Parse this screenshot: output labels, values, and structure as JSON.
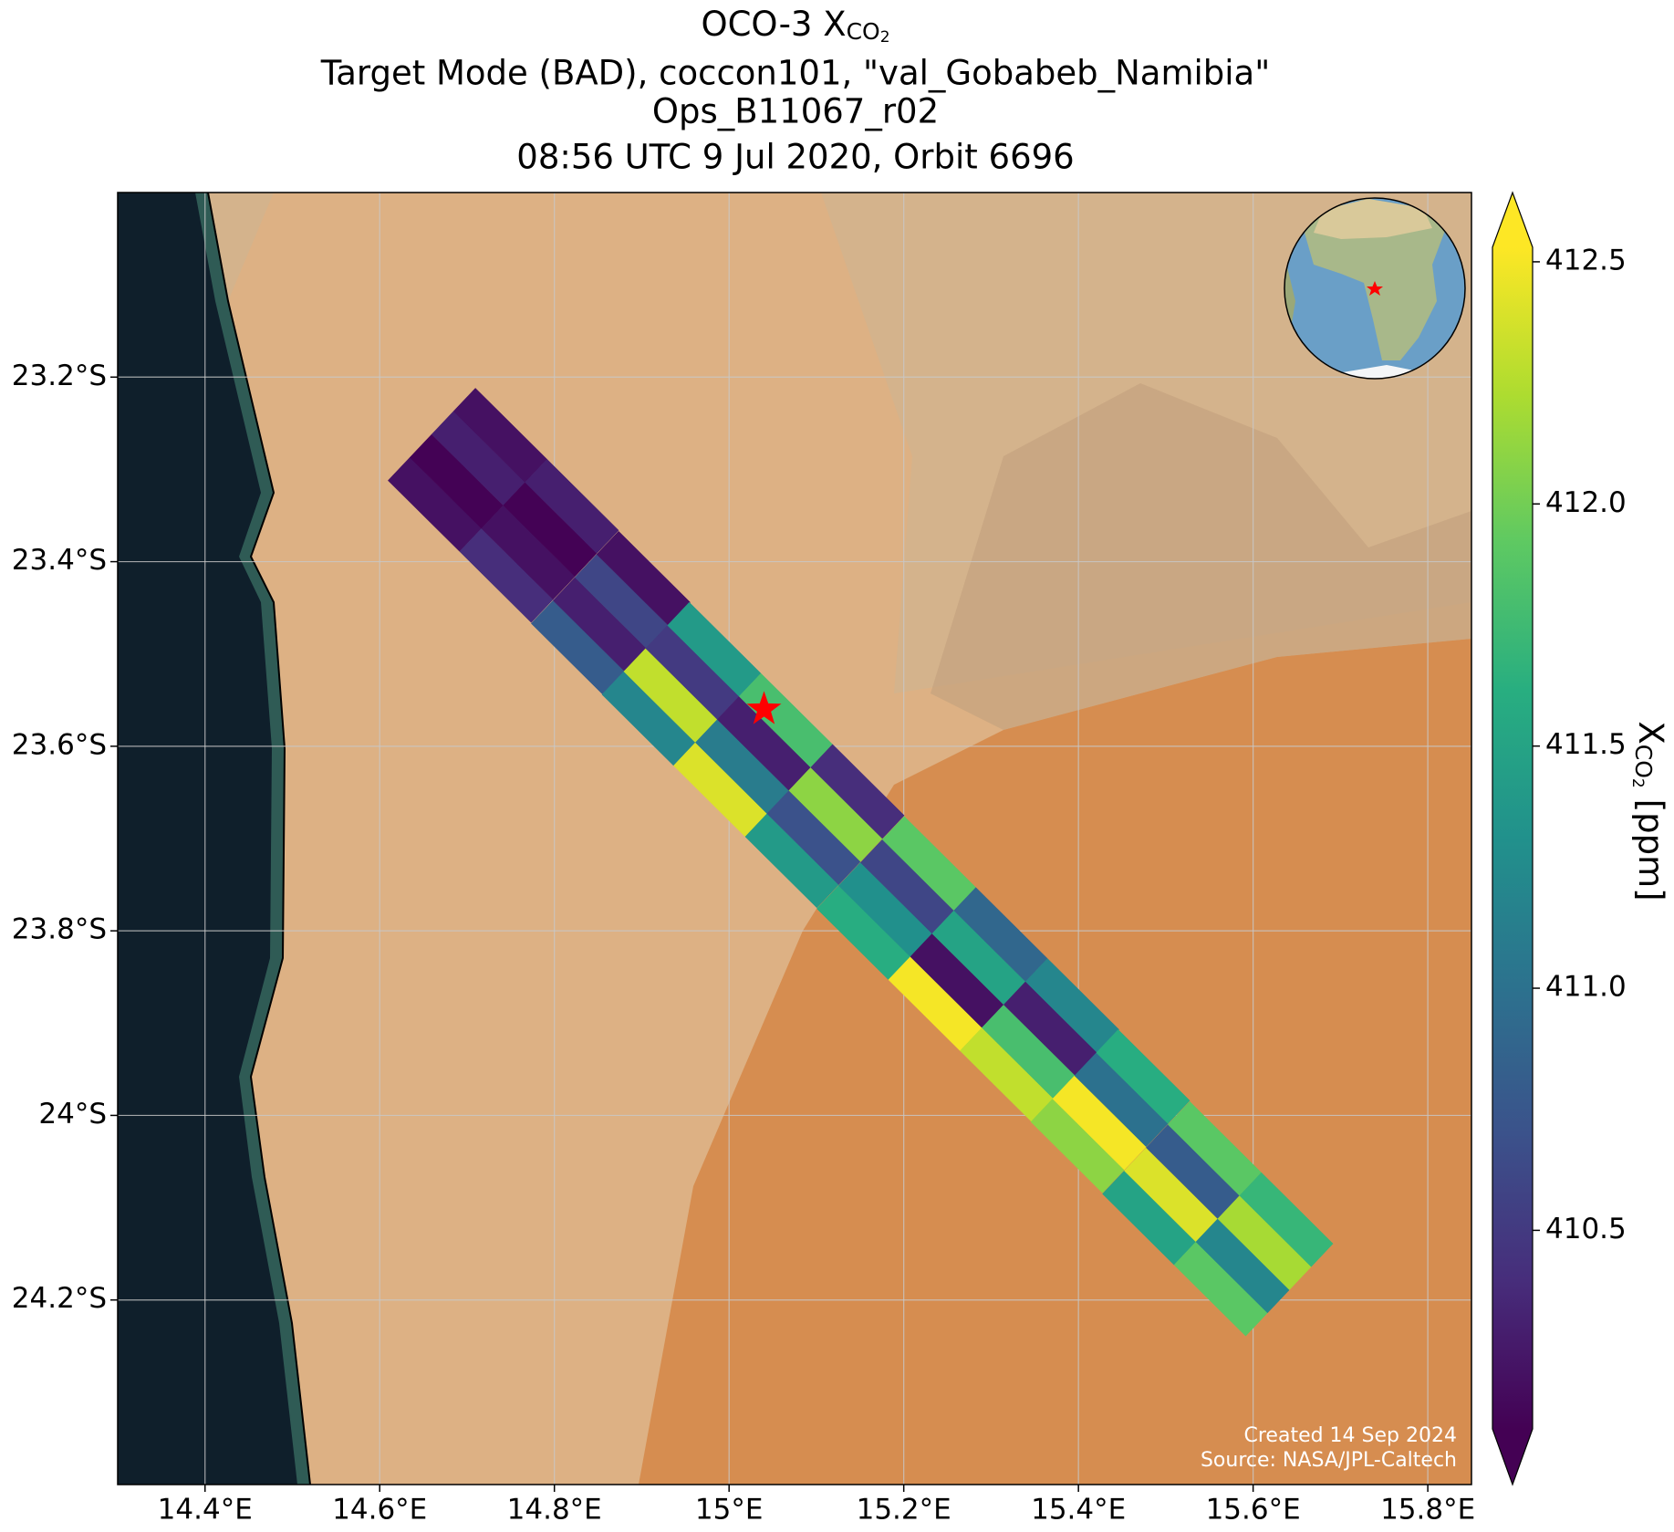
{
  "chart_data": {
    "type": "map",
    "title": {
      "text": "OCO-3 X",
      "subscript": "CO",
      "subsubscript": "2"
    },
    "subtitle_lines": [
      "Target Mode (BAD), coccon101, \"val_Gobabeb_Namibia\"",
      "Ops_B11067_r02",
      "08:56 UTC 9 Jul 2020, Orbit 6696"
    ],
    "xlim": [
      14.3,
      15.85
    ],
    "ylim": [
      -24.4,
      -23.0
    ],
    "xticks": [
      {
        "value": 14.4,
        "label": "14.4°E"
      },
      {
        "value": 14.6,
        "label": "14.6°E"
      },
      {
        "value": 14.8,
        "label": "14.8°E"
      },
      {
        "value": 15.0,
        "label": "15°E"
      },
      {
        "value": 15.2,
        "label": "15.2°E"
      },
      {
        "value": 15.4,
        "label": "15.4°E"
      },
      {
        "value": 15.6,
        "label": "15.6°E"
      },
      {
        "value": 15.8,
        "label": "15.8°E"
      }
    ],
    "yticks": [
      {
        "value": -23.2,
        "label": "23.2°S"
      },
      {
        "value": -23.4,
        "label": "23.4°S"
      },
      {
        "value": -23.6,
        "label": "23.6°S"
      },
      {
        "value": -23.8,
        "label": "23.8°S"
      },
      {
        "value": -24.0,
        "label": "24°S"
      },
      {
        "value": -24.2,
        "label": "24.2°S"
      }
    ],
    "grid": true,
    "soundings": {
      "lon": [
        14.663,
        14.688,
        14.713,
        14.738,
        14.745,
        14.77,
        14.795,
        14.82,
        14.827,
        14.852,
        14.877,
        14.902,
        14.908,
        14.933,
        14.958,
        14.983,
        14.99,
        15.015,
        15.04,
        15.065,
        15.072,
        15.097,
        15.122,
        15.147,
        15.154,
        15.179,
        15.204,
        15.229,
        15.236,
        15.261,
        15.286,
        15.311,
        15.318,
        15.343,
        15.368,
        15.393,
        15.399,
        15.424,
        15.449,
        15.474,
        15.481,
        15.506,
        15.531,
        15.556,
        15.563,
        15.588,
        15.613,
        15.638
      ],
      "lat": [
        -23.338,
        -23.313,
        -23.288,
        -23.263,
        -23.415,
        -23.39,
        -23.365,
        -23.34,
        -23.493,
        -23.468,
        -23.443,
        -23.418,
        -23.57,
        -23.545,
        -23.52,
        -23.495,
        -23.647,
        -23.622,
        -23.597,
        -23.572,
        -23.724,
        -23.699,
        -23.674,
        -23.649,
        -23.802,
        -23.777,
        -23.752,
        -23.727,
        -23.879,
        -23.854,
        -23.829,
        -23.804,
        -23.956,
        -23.931,
        -23.906,
        -23.881,
        -24.033,
        -24.008,
        -23.983,
        -23.958,
        -24.111,
        -24.086,
        -24.061,
        -24.036,
        -24.188,
        -24.163,
        -24.138,
        -24.113
      ],
      "values": [
        410.2,
        410.1,
        410.3,
        410.2,
        410.4,
        410.2,
        410.1,
        410.3,
        410.8,
        410.3,
        410.6,
        410.2,
        411.2,
        412.3,
        410.5,
        411.4,
        412.4,
        411.1,
        410.3,
        411.8,
        411.4,
        410.7,
        412.1,
        410.4,
        411.6,
        411.3,
        410.6,
        411.9,
        412.5,
        410.2,
        411.5,
        410.9,
        412.3,
        411.8,
        410.3,
        411.2,
        412.1,
        412.5,
        411.0,
        411.6,
        411.5,
        412.4,
        410.8,
        411.9,
        411.9,
        411.2,
        412.2,
        411.7
      ]
    },
    "target": {
      "lon": 15.04,
      "lat": -23.56
    },
    "colorbar": {
      "colormap": "viridis",
      "clim": [
        410.09,
        412.53
      ],
      "extend": "both",
      "ticks": [
        410.5,
        {
          "value": 411.0,
          "label": "411.0"
        },
        411.5,
        {
          "value": 412.0,
          "label": "412.0"
        },
        412.5
      ],
      "label": {
        "text": "X",
        "subscript": "CO",
        "subsubscript": "2",
        "unit": "[ppm]"
      }
    },
    "annotations": [
      "Created 14 Sep 2024",
      "Source: NASA/JPL-Caltech"
    ]
  }
}
